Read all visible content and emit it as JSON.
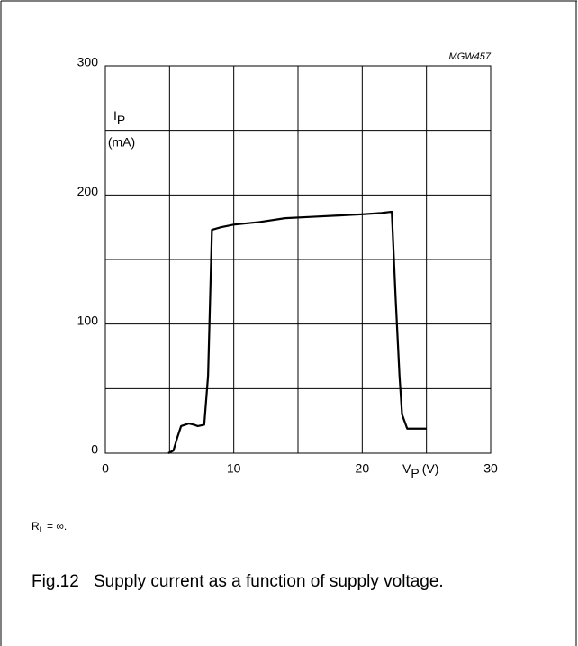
{
  "chart_data": {
    "type": "line",
    "code": "MGW457",
    "xlabel": {
      "symbol": "V",
      "subscript": "P",
      "unit": "(V)"
    },
    "ylabel": {
      "symbol": "I",
      "subscript": "P",
      "unit": "(mA)"
    },
    "x": [
      4.9,
      5.3,
      5.6,
      5.9,
      6.5,
      6.9,
      7.2,
      7.7,
      8.0,
      8.3,
      9,
      10,
      12,
      14,
      16,
      18,
      20,
      21.5,
      22.3,
      22.6,
      22.9,
      23.1,
      23.5,
      25
    ],
    "series": [
      {
        "color": "#000000",
        "values": [
          0,
          2,
          12,
          21,
          23,
          22,
          21,
          22,
          60,
          173,
          175,
          177,
          179,
          182,
          183,
          184,
          185,
          186,
          187,
          120,
          60,
          30,
          19,
          19
        ]
      }
    ],
    "xlim": [
      0,
      30
    ],
    "xticks": [
      0,
      10,
      20,
      30
    ],
    "x_minor_ticks": [
      5,
      15,
      25
    ],
    "ylim": [
      0,
      300
    ],
    "yticks": [
      0,
      100,
      200,
      300
    ],
    "y_minor_ticks": [
      50,
      150,
      250
    ],
    "grid": true,
    "note": {
      "symbol": "R",
      "subscript": "L",
      "text": " = ∞."
    },
    "caption": {
      "number": "Fig.12",
      "text": "Supply current as a function of supply voltage."
    }
  }
}
